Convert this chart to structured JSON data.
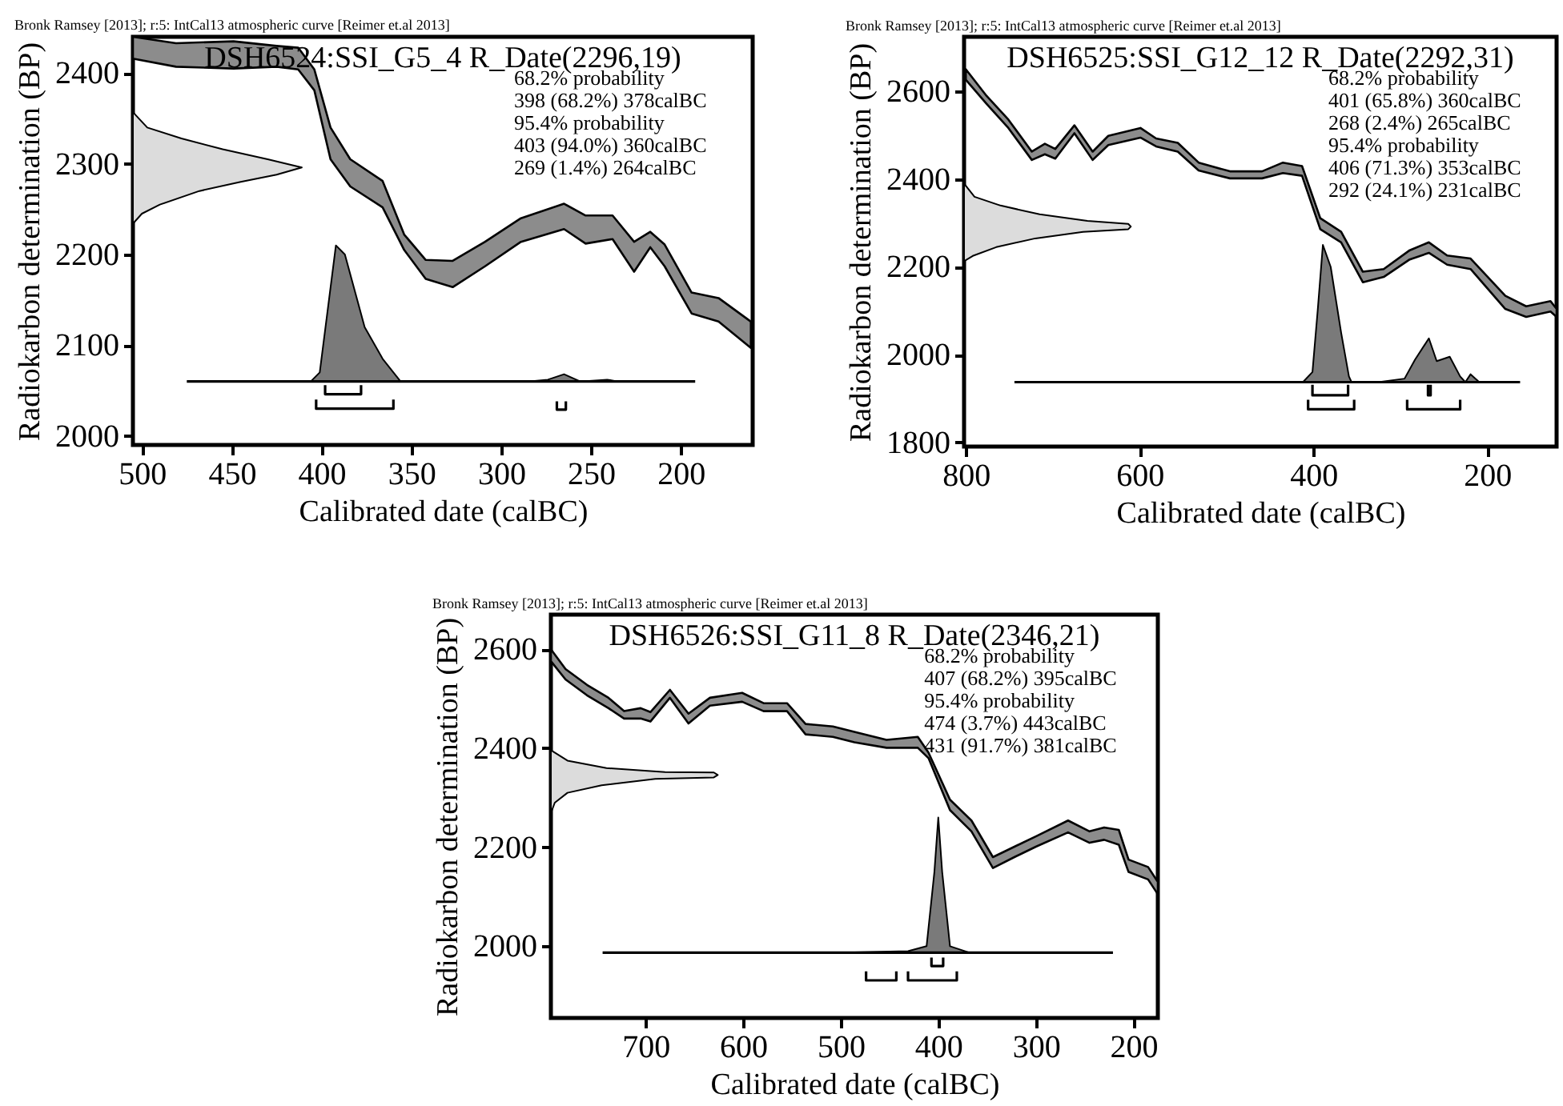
{
  "chart_data": [
    {
      "type": "line",
      "title": "DSH6524:SSI_G5_4 R_Date(2296,19)",
      "subtitle": "Bronk Ramsey [2013]; r:5: IntCal13 atmospheric curve [Reimer et.al 2013]",
      "xlabel": "Calibrated date (calBC)",
      "ylabel": "Radiokarbon determination (BP)",
      "annotations": [
        "68.2% probability",
        "398 (68.2%) 378calBC",
        "95.4% probability",
        "403 (94.0%) 360calBC",
        "269 (1.4%) 264calBC"
      ],
      "xlim": [
        505,
        160
      ],
      "ylim": [
        1990,
        2440
      ],
      "xticks": [
        500,
        450,
        400,
        350,
        300,
        250,
        200
      ],
      "yticks": [
        2000,
        2100,
        2200,
        2300,
        2400
      ],
      "series": [
        {
          "type": "area",
          "color": "#dcdcdc",
          "x": [
            505,
            497,
            478,
            455,
            430,
            411,
            425,
            445,
            468,
            490,
            500,
            505
          ],
          "values": [
            2357,
            2340,
            2328,
            2316,
            2305,
            2296,
            2288,
            2280,
            2270,
            2255,
            2245,
            2234
          ]
        },
        {
          "type": "line",
          "color": "#8c8c8c",
          "x": [
            505,
            481,
            449,
            425,
            413,
            404,
            395,
            384,
            366,
            354,
            342,
            327,
            309,
            289,
            265,
            253,
            238,
            226,
            217,
            209,
            194,
            179,
            161
          ],
          "values": [
            null,
            null,
            null,
            null,
            null,
            null,
            null,
            null,
            null,
            null,
            null,
            null,
            null,
            null,
            null,
            null,
            null,
            null,
            null,
            null,
            null,
            null,
            null
          ],
          "lower": [
            2416,
            2407,
            2405,
            2407,
            2404,
            2381,
            2305,
            2275,
            2252,
            2205,
            2173,
            2164,
            2187,
            2214,
            2228,
            2212,
            2217,
            2181,
            2208,
            2187,
            2135,
            2126,
            2097
          ],
          "upper": [
            2440,
            2433,
            2435,
            2430,
            2428,
            2404,
            2340,
            2305,
            2281,
            2222,
            2194,
            2193,
            2214,
            2240,
            2256,
            2243,
            2243,
            2214,
            2225,
            2211,
            2158,
            2152,
            2126
          ]
        },
        {
          "type": "area",
          "color": "#7a7a7a",
          "x": [
            406,
            401,
            392,
            387,
            376,
            366,
            356,
            285,
            274,
            265,
            256,
            241,
            235
          ],
          "values": [
            2060,
            2070,
            2210,
            2200,
            2120,
            2085,
            2060,
            2060,
            2062,
            2068,
            2060,
            2062,
            2060
          ]
        },
        {
          "type": "line",
          "color": "#000000",
          "x": [
            475,
            192
          ],
          "values": [
            2060,
            2060
          ]
        },
        {
          "type": "line",
          "color": "#000000",
          "x": [
            398,
            398,
            378,
            378
          ],
          "values": [
            2056,
            2046,
            2046,
            2056
          ]
        },
        {
          "type": "line",
          "color": "#000000",
          "x": [
            403,
            403,
            360,
            360
          ],
          "values": [
            2040,
            2030,
            2030,
            2040
          ]
        },
        {
          "type": "line",
          "color": "#000000",
          "x": [
            269,
            269,
            264,
            264
          ],
          "values": [
            2038,
            2029,
            2029,
            2038
          ]
        }
      ]
    },
    {
      "type": "line",
      "title": "DSH6525:SSI_G12_12 R_Date(2292,31)",
      "subtitle": "Bronk Ramsey [2013]; r:5: IntCal13 atmospheric curve [Reimer et.al 2013]",
      "xlabel": "Calibrated date (calBC)",
      "ylabel": "Radiokarbon determination (BP)",
      "annotations": [
        "68.2% probability",
        "401 (65.8%) 360calBC",
        "268 (2.4%) 265calBC",
        "95.4% probability",
        "406 (71.3%) 353calBC",
        "292 (24.1%) 231calBC"
      ],
      "xlim": [
        802,
        120
      ],
      "ylim": [
        1790,
        2725
      ],
      "xticks": [
        800,
        600,
        400,
        200
      ],
      "yticks": [
        1800,
        2000,
        2200,
        2400,
        2600
      ],
      "series": [
        {
          "type": "area",
          "color": "#dcdcdc",
          "x": [
            802,
            790,
            760,
            715,
            660,
            613,
            610,
            613,
            665,
            720,
            765,
            792,
            802
          ],
          "values": [
            2390,
            2360,
            2340,
            2320,
            2305,
            2298,
            2292,
            2286,
            2280,
            2265,
            2245,
            2225,
            2213
          ]
        },
        {
          "type": "line",
          "color": "#8c8c8c",
          "x": [
            800,
            776,
            751,
            724,
            709,
            697,
            675,
            654,
            636,
            599,
            581,
            556,
            532,
            496,
            459,
            435,
            413,
            392,
            368,
            343,
            319,
            289,
            267,
            246,
            219,
            179,
            155,
            127,
            120
          ],
          "values": [
            null,
            null,
            null,
            null,
            null,
            null,
            null,
            null,
            null,
            null,
            null,
            null,
            null,
            null,
            null,
            null,
            null,
            null,
            null,
            null,
            null,
            null,
            null,
            null,
            null,
            null,
            null,
            null,
            null
          ],
          "lower": [
            2627,
            2572,
            2517,
            2444,
            2457,
            2447,
            2505,
            2444,
            2478,
            2495,
            2475,
            2463,
            2420,
            2402,
            2402,
            2414,
            2408,
            2286,
            2256,
            2165,
            2177,
            2217,
            2232,
            2205,
            2195,
            2104,
            2086,
            2098,
            2086
          ],
          "upper": [
            2651,
            2590,
            2536,
            2463,
            2481,
            2469,
            2523,
            2463,
            2499,
            2517,
            2493,
            2483,
            2438,
            2418,
            2418,
            2438,
            2430,
            2311,
            2280,
            2189,
            2195,
            2238,
            2256,
            2226,
            2219,
            2134,
            2110,
            2122,
            2104
          ]
        },
        {
          "type": "area",
          "color": "#7a7a7a",
          "x": [
            412,
            401,
            395,
            389,
            380,
            368,
            359,
            356,
            325,
            295,
            283,
            267,
            258,
            243,
            231,
            225,
            219,
            209
          ],
          "values": [
            1937,
            1960,
            2100,
            2250,
            2200,
            2050,
            1950,
            1937,
            1937,
            1945,
            1988,
            2037,
            1985,
            1995,
            1950,
            1937,
            1955,
            1937
          ]
        },
        {
          "type": "line",
          "color": "#000000",
          "x": [
            744,
            162
          ],
          "values": [
            1937,
            1937
          ]
        },
        {
          "type": "line",
          "color": "#000000",
          "x": [
            401,
            401,
            360,
            360
          ],
          "values": [
            1931,
            1907,
            1907,
            1931
          ]
        },
        {
          "type": "line",
          "color": "#000000",
          "x": [
            268,
            268,
            265,
            265
          ],
          "values": [
            1931,
            1907,
            1907,
            1931
          ]
        },
        {
          "type": "line",
          "color": "#000000",
          "x": [
            406,
            406,
            353,
            353
          ],
          "values": [
            1897,
            1875,
            1875,
            1897
          ]
        },
        {
          "type": "line",
          "color": "#000000",
          "x": [
            292,
            292,
            231,
            231
          ],
          "values": [
            1897,
            1875,
            1875,
            1897
          ]
        }
      ]
    },
    {
      "type": "line",
      "title": "DSH6526:SSI_G11_8 R_Date(2346,21)",
      "subtitle": "Bronk Ramsey [2013]; r:5: IntCal13 atmospheric curve [Reimer et.al 2013]",
      "xlabel": "Calibrated date (calBC)",
      "ylabel": "Radiokarbon determination (BP)",
      "annotations": [
        "68.2% probability",
        "407 (68.2%) 395calBC",
        "95.4% probability",
        "474 (3.7%) 443calBC",
        "431 (91.7%) 381calBC"
      ],
      "xlim": [
        797,
        175
      ],
      "ylim": [
        1855,
        2670
      ],
      "xticks": [
        700,
        600,
        500,
        400,
        300,
        200
      ],
      "yticks": [
        2000,
        2200,
        2400,
        2600
      ],
      "series": [
        {
          "type": "area",
          "color": "#dcdcdc",
          "x": [
            797,
            780,
            740,
            680,
            630,
            626,
            630,
            690,
            745,
            780,
            793,
            797
          ],
          "values": [
            2396,
            2375,
            2360,
            2352,
            2351,
            2346,
            2341,
            2338,
            2325,
            2310,
            2290,
            2269
          ]
        },
        {
          "type": "line",
          "color": "#8c8c8c",
          "x": [
            797,
            782,
            760,
            738,
            722,
            705,
            695,
            675,
            656,
            634,
            601,
            579,
            555,
            536,
            508,
            486,
            453,
            421,
            410,
            388,
            366,
            344,
            322,
            300,
            267,
            245,
            230,
            215,
            205,
            185,
            175
          ],
          "values": [
            null,
            null,
            null,
            null,
            null,
            null,
            null,
            null,
            null,
            null,
            null,
            null,
            null,
            null,
            null,
            null,
            null,
            null,
            null,
            null,
            null,
            null,
            null,
            null,
            null,
            null,
            null,
            null,
            null,
            null,
            null
          ],
          "lower": [
            2576,
            2539,
            2507,
            2481,
            2460,
            2460,
            2454,
            2502,
            2450,
            2486,
            2494,
            2475,
            2475,
            2428,
            2423,
            2412,
            2401,
            2401,
            2380,
            2275,
            2232,
            2158,
            2180,
            2201,
            2230,
            2209,
            2215,
            2205,
            2150,
            2135,
            2105
          ],
          "upper": [
            2600,
            2560,
            2528,
            2502,
            2475,
            2481,
            2473,
            2518,
            2470,
            2502,
            2512,
            2491,
            2491,
            2449,
            2444,
            2433,
            2417,
            2423,
            2391,
            2296,
            2254,
            2180,
            2201,
            2222,
            2254,
            2232,
            2240,
            2235,
            2175,
            2160,
            2130
          ]
        },
        {
          "type": "area",
          "color": "#7a7a7a",
          "x": [
            495,
            431,
            412,
            404,
            400,
            396,
            388,
            368
          ],
          "values": [
            1987,
            1990,
            2000,
            2150,
            2260,
            2150,
            2000,
            1987
          ]
        },
        {
          "type": "line",
          "color": "#000000",
          "x": [
            744,
            221
          ],
          "values": [
            1987,
            1987
          ]
        },
        {
          "type": "line",
          "color": "#000000",
          "x": [
            407,
            407,
            395,
            395
          ],
          "values": [
            1977,
            1960,
            1960,
            1977
          ]
        },
        {
          "type": "line",
          "color": "#000000",
          "x": [
            474,
            474,
            443,
            443
          ],
          "values": [
            1949,
            1931,
            1931,
            1949
          ]
        },
        {
          "type": "line",
          "color": "#000000",
          "x": [
            431,
            431,
            381,
            381
          ],
          "values": [
            1949,
            1931,
            1931,
            1949
          ]
        }
      ]
    }
  ]
}
